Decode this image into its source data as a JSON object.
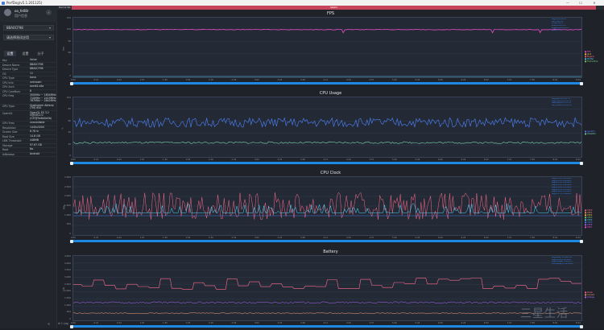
{
  "window": {
    "title": "PerfDog(v5.1.201125)",
    "minimize": "—",
    "maximize": "☐",
    "close": "✕"
  },
  "profile": {
    "name": "oo_fe08r",
    "status": "用户信息"
  },
  "device": {
    "selected": "8BA0CF98"
  },
  "app": {
    "selected": "请选择测试应用"
  },
  "tabs": [
    "设置",
    "设置",
    "分子"
  ],
  "info_table": {
    "header": {
      "key": "Key",
      "value": "Value"
    },
    "rows": [
      {
        "k": "Device Name",
        "v": "8BA0CF98"
      },
      {
        "k": "Device Type",
        "v": "8BA0CF98"
      },
      {
        "k": "OS",
        "v": "11"
      },
      {
        "k": "CPU Type",
        "v": "kona"
      },
      {
        "k": "CPU Info",
        "v": "unknown"
      },
      {
        "k": "CPU Arch",
        "v": "arm64-v8a"
      },
      {
        "k": "CPU CoreNum",
        "v": "8"
      },
      {
        "k": "CPU Freq",
        "v": "300MHz ~ 1804MHz\n710MHz ~ 2419MHz\n787MHz ~ 2842MHz"
      },
      {
        "k": "GPU Type",
        "v": "Qualcomm Adreno\n(TM) 650"
      },
      {
        "k": "OpenGL",
        "v": "OpenGL ES 3.2\nV@0502.0\n(GIT@5e8d0a5b)"
      },
      {
        "k": "GPU Freq",
        "v": "unavailable"
      },
      {
        "k": "Resolution",
        "v": "1440x3200"
      },
      {
        "k": "Screen Size",
        "v": "6.78 in"
      },
      {
        "k": "Root Size",
        "v": "14.8 GB"
      },
      {
        "k": "LMK Threshold",
        "v": "448MB"
      },
      {
        "k": "Storage",
        "v": "97.67 GB"
      },
      {
        "k": "Root",
        "v": "No"
      },
      {
        "k": "IsRelease",
        "v": "Android"
      }
    ]
  },
  "recording": {
    "label": "label1",
    "left": "Normal Tab"
  },
  "x_ticks": [
    "0:00",
    "0:21",
    "0:44",
    "1:07",
    "1:30",
    "1:53",
    "2:16",
    "2:39",
    "3:02",
    "3:25",
    "3:48",
    "4:11",
    "4:34",
    "4:57",
    "5:20",
    "5:43",
    "6:06",
    "6:29",
    "6:52",
    "7:15",
    "7:38",
    "8:01",
    "8:24"
  ],
  "panels": [
    {
      "title": "FPS",
      "ylabel": "FPS",
      "yticks": [
        "150",
        "120",
        "90",
        "60",
        "30",
        "0"
      ],
      "legend": [
        {
          "t": "FPS",
          "c": "#ff4fd8"
        },
        {
          "t": "Jank",
          "c": "#ffd04a"
        },
        {
          "t": "BigJank",
          "c": "#ff6b6b"
        },
        {
          "t": "Stutter",
          "c": "#4fd8ff"
        },
        {
          "t": "FrameTime",
          "c": "#7dd87d"
        }
      ],
      "stats": [
        "Avg(FPS)=120.1",
        "Var(FPS)=0.2",
        "Drop(FPS)=0",
        "Jank(/10min)=0",
        "BigJank(/10min)=0",
        "Stutter=0%"
      ]
    },
    {
      "title": "CPU Usage",
      "ylabel": "%",
      "yticks": [
        "100",
        "80",
        "60",
        "40",
        "20",
        "0"
      ],
      "legend": [
        {
          "t": "AppCPU",
          "c": "#4f84ff"
        },
        {
          "t": "TotalCPU",
          "c": "#7dd8b0"
        }
      ],
      "stats": [
        "Avg(AppCPU)=61.7%",
        "Avg(TotalCPU)=24.3%",
        "Max(AppCPU)=74.5%",
        "Max(TotalCPU)=29.4%"
      ]
    },
    {
      "title": "CPU Clock",
      "ylabel": "MHz",
      "yticks": [
        "3,000",
        "2,500",
        "2,000",
        "1,500",
        "1,000",
        "500",
        "0"
      ],
      "legend": [
        {
          "t": "CPU0",
          "c": "#ff6b8b"
        },
        {
          "t": "CPU1",
          "c": "#ff9f6b"
        },
        {
          "t": "CPU2",
          "c": "#ffd04a"
        },
        {
          "t": "CPU3",
          "c": "#7dd87d"
        },
        {
          "t": "CPU4",
          "c": "#4fd8ff"
        },
        {
          "t": "CPU5",
          "c": "#4f84ff"
        },
        {
          "t": "CPU6",
          "c": "#b06bff"
        },
        {
          "t": "CPU7",
          "c": "#ff4fd8"
        }
      ],
      "stats": [
        "Avg(CPU0)=1,204MHz",
        "Avg(CPU1)=1,204MHz",
        "Avg(CPU2)=1,204MHz",
        "Avg(CPU3)=1,204MHz",
        "Avg(CPU4)=1,176MHz",
        "Avg(CPU5)=1,176MHz",
        "Avg(CPU6)=1,176MHz",
        "Avg(CPU7)=1,588MHz"
      ]
    },
    {
      "title": "Battery",
      "ylabel": "mW",
      "yticks": [
        "4,500",
        "4,000",
        "3,500",
        "3,000",
        "2,500",
        "2,000",
        "1,500",
        "1,000",
        "500",
        "0"
      ],
      "legend": [
        {
          "t": "Power",
          "c": "#ff6b8b"
        },
        {
          "t": "Current",
          "c": "#ff9f6b"
        },
        {
          "t": "Voltage",
          "c": "#b06bff"
        }
      ],
      "stats": [
        "Avg(Power)=2,466mW",
        "Avg(Current)=622mA",
        "Avg(Voltage)=3,963mV",
        "Sum(Battery)=343mWh"
      ]
    }
  ],
  "footer": {
    "left": "1 Log"
  },
  "watermark": "三星生活",
  "colors": {
    "accent": "#1e88e5",
    "rec": "#c8445a"
  }
}
